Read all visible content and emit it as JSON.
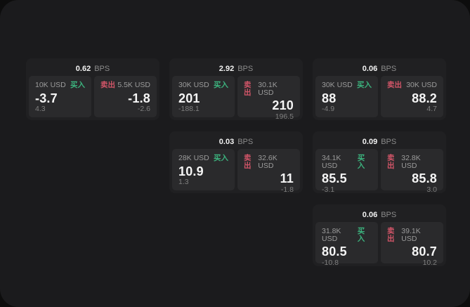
{
  "labels": {
    "bps_unit": "BPS",
    "buy": "买入",
    "sell": "卖出"
  },
  "colors": {
    "buy_green": "#3cb37e",
    "sell_red": "#d25568",
    "panel_bg": "#1b1b1d",
    "card_bg": "#202022",
    "subcard_bg": "#2a2a2c"
  },
  "cards": [
    {
      "row": 1,
      "col": 1,
      "bps_value": "0.62",
      "buy": {
        "size": "10K USD",
        "price": "-3.7",
        "sub": "4.3"
      },
      "sell": {
        "size": "5.5K USD",
        "price": "-1.8",
        "sub": "-2.6"
      }
    },
    {
      "row": 1,
      "col": 2,
      "bps_value": "2.92",
      "buy": {
        "size": "30K USD",
        "price": "201",
        "sub": "-188.1"
      },
      "sell": {
        "size": "30.1K USD",
        "price": "210",
        "sub": "196.5"
      }
    },
    {
      "row": 1,
      "col": 3,
      "bps_value": "0.06",
      "buy": {
        "size": "30K USD",
        "price": "88",
        "sub": "-4.9"
      },
      "sell": {
        "size": "30K USD",
        "price": "88.2",
        "sub": "4.7"
      }
    },
    {
      "row": 2,
      "col": 2,
      "bps_value": "0.03",
      "buy": {
        "size": "28K USD",
        "price": "10.9",
        "sub": "1.3"
      },
      "sell": {
        "size": "32.6K USD",
        "price": "11",
        "sub": "-1.8"
      }
    },
    {
      "row": 2,
      "col": 3,
      "bps_value": "0.09",
      "buy": {
        "size": "34.1K USD",
        "price": "85.5",
        "sub": "-3.1"
      },
      "sell": {
        "size": "32.8K USD",
        "price": "85.8",
        "sub": "3.0"
      }
    },
    {
      "row": 3,
      "col": 3,
      "bps_value": "0.06",
      "buy": {
        "size": "31.8K USD",
        "price": "80.5",
        "sub": "-10.8"
      },
      "sell": {
        "size": "39.1K USD",
        "price": "80.7",
        "sub": "10.2"
      }
    }
  ]
}
